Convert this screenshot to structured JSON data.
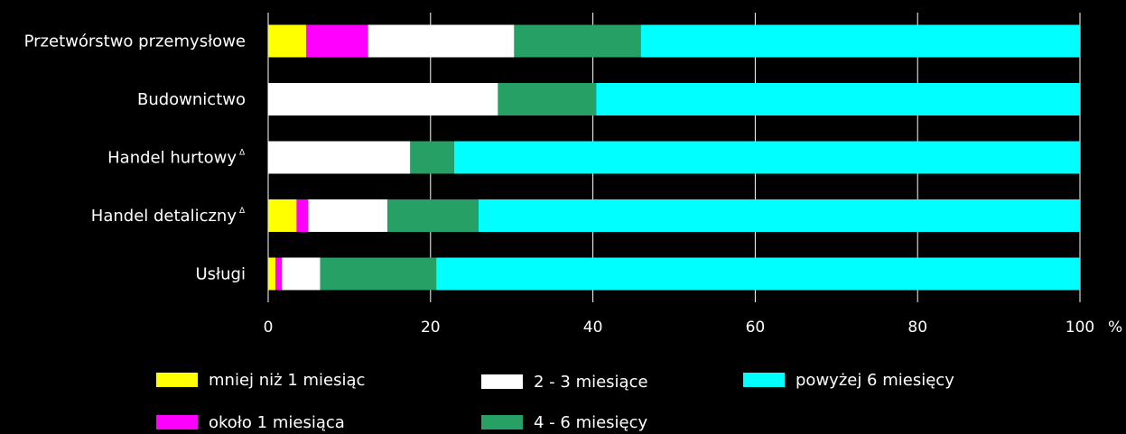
{
  "chart_data": {
    "type": "bar",
    "orientation": "horizontal",
    "stacked": true,
    "categories": [
      "Przetwórstwo przemysłowe",
      "Budownictwo",
      "Handel hurtowy",
      "Handel detaliczny",
      "Usługi"
    ],
    "category_markers": [
      "",
      "",
      "Δ",
      "Δ",
      ""
    ],
    "series": [
      {
        "name": "mniej niż 1 miesiąc",
        "color": "#ffff00",
        "values": [
          4.7,
          0,
          0,
          3.5,
          0.9
        ]
      },
      {
        "name": "około 1 miesiąca",
        "color": "#ff00ff",
        "values": [
          7.6,
          0,
          0,
          1.4,
          0.8
        ]
      },
      {
        "name": "2 - 3 miesiące",
        "color": "#ffffff",
        "values": [
          18.0,
          28.3,
          17.5,
          9.8,
          4.7
        ]
      },
      {
        "name": "4 - 6 miesięcy",
        "color": "#26a065",
        "values": [
          15.6,
          12.1,
          5.4,
          11.2,
          14.3
        ]
      },
      {
        "name": "powyżej 6 miesięcy",
        "color": "#00ffff",
        "values": [
          54.1,
          59.6,
          77.1,
          74.1,
          79.3
        ]
      }
    ],
    "xlim": [
      0,
      100
    ],
    "xticks": [
      0,
      20,
      40,
      60,
      80,
      100
    ],
    "x_unit": "%",
    "grid": true,
    "legend": {
      "position": "bottom"
    }
  }
}
